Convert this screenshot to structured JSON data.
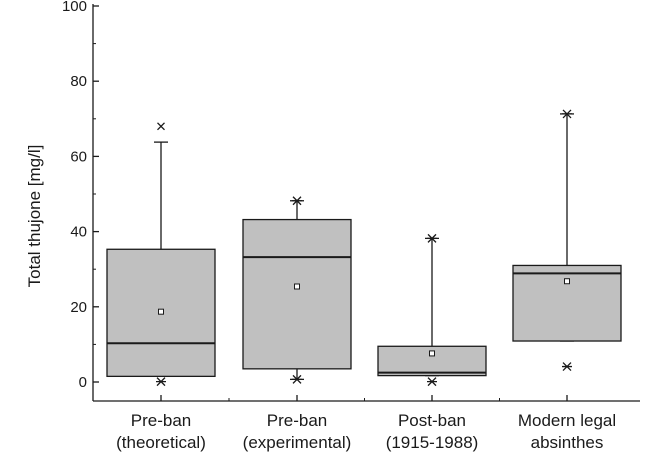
{
  "chart_data": {
    "type": "box",
    "title": "",
    "xlabel": "",
    "ylabel": "Total thujone [mg/l]",
    "ylim": [
      0,
      100
    ],
    "yticks": [
      0,
      20,
      40,
      60,
      80,
      100
    ],
    "grid": false,
    "categories": [
      [
        "Pre-ban",
        "(theoretical)"
      ],
      [
        "Pre-ban",
        "(experimental)"
      ],
      [
        "Post-ban",
        "(1915-1988)"
      ],
      [
        "Modern legal",
        "absinthes"
      ]
    ],
    "boxes": [
      {
        "whisker_low": 1.5,
        "q1": 1.5,
        "median": 10.3,
        "q3": 35.3,
        "whisker_high": 63.8,
        "mean": 18.7,
        "min": 0.1,
        "max": 68.0,
        "max_marker": "x"
      },
      {
        "whisker_low": 0.7,
        "q1": 3.5,
        "median": 33.2,
        "q3": 43.2,
        "whisker_high": 48.2,
        "mean": 25.4,
        "min": 0.7,
        "max": 48.2,
        "max_marker": "star"
      },
      {
        "whisker_low": 1.7,
        "q1": 1.7,
        "median": 2.5,
        "q3": 9.5,
        "whisker_high": 38.2,
        "mean": 7.6,
        "min": 0.1,
        "max": 38.2,
        "max_marker": "star"
      },
      {
        "whisker_low": 10.9,
        "q1": 10.9,
        "median": 28.9,
        "q3": 31.0,
        "whisker_high": 71.3,
        "mean": 26.8,
        "min": 4.1,
        "max": 71.3,
        "max_marker": "star"
      }
    ],
    "colors": {
      "box_fill": "#c0c0c0",
      "stroke": "#1a1a1a",
      "mean_marker": "#ffffff"
    }
  }
}
